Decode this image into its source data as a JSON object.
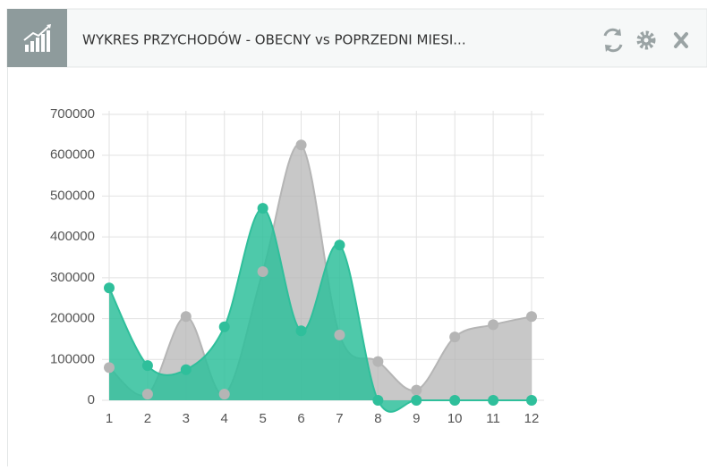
{
  "chart_data": {
    "type": "area",
    "title": "WYKRES PRZYCHODÓW - OBECNY vs POPRZEDNI MIESI...",
    "categories": [
      "1",
      "2",
      "3",
      "4",
      "5",
      "6",
      "7",
      "8",
      "9",
      "10",
      "11",
      "12"
    ],
    "series": [
      {
        "color": "#b5b5b5",
        "values": [
          80000,
          15000,
          205000,
          15000,
          315000,
          625000,
          160000,
          95000,
          25000,
          155000,
          185000,
          205000
        ]
      },
      {
        "color": "#2fbf9b",
        "values": [
          275000,
          85000,
          75000,
          180000,
          470000,
          170000,
          380000,
          0,
          0,
          0,
          0,
          0
        ]
      }
    ],
    "ylim": [
      0,
      700000
    ],
    "yticks": [
      0,
      100000,
      200000,
      300000,
      400000,
      500000,
      600000,
      700000
    ],
    "grid": true
  }
}
